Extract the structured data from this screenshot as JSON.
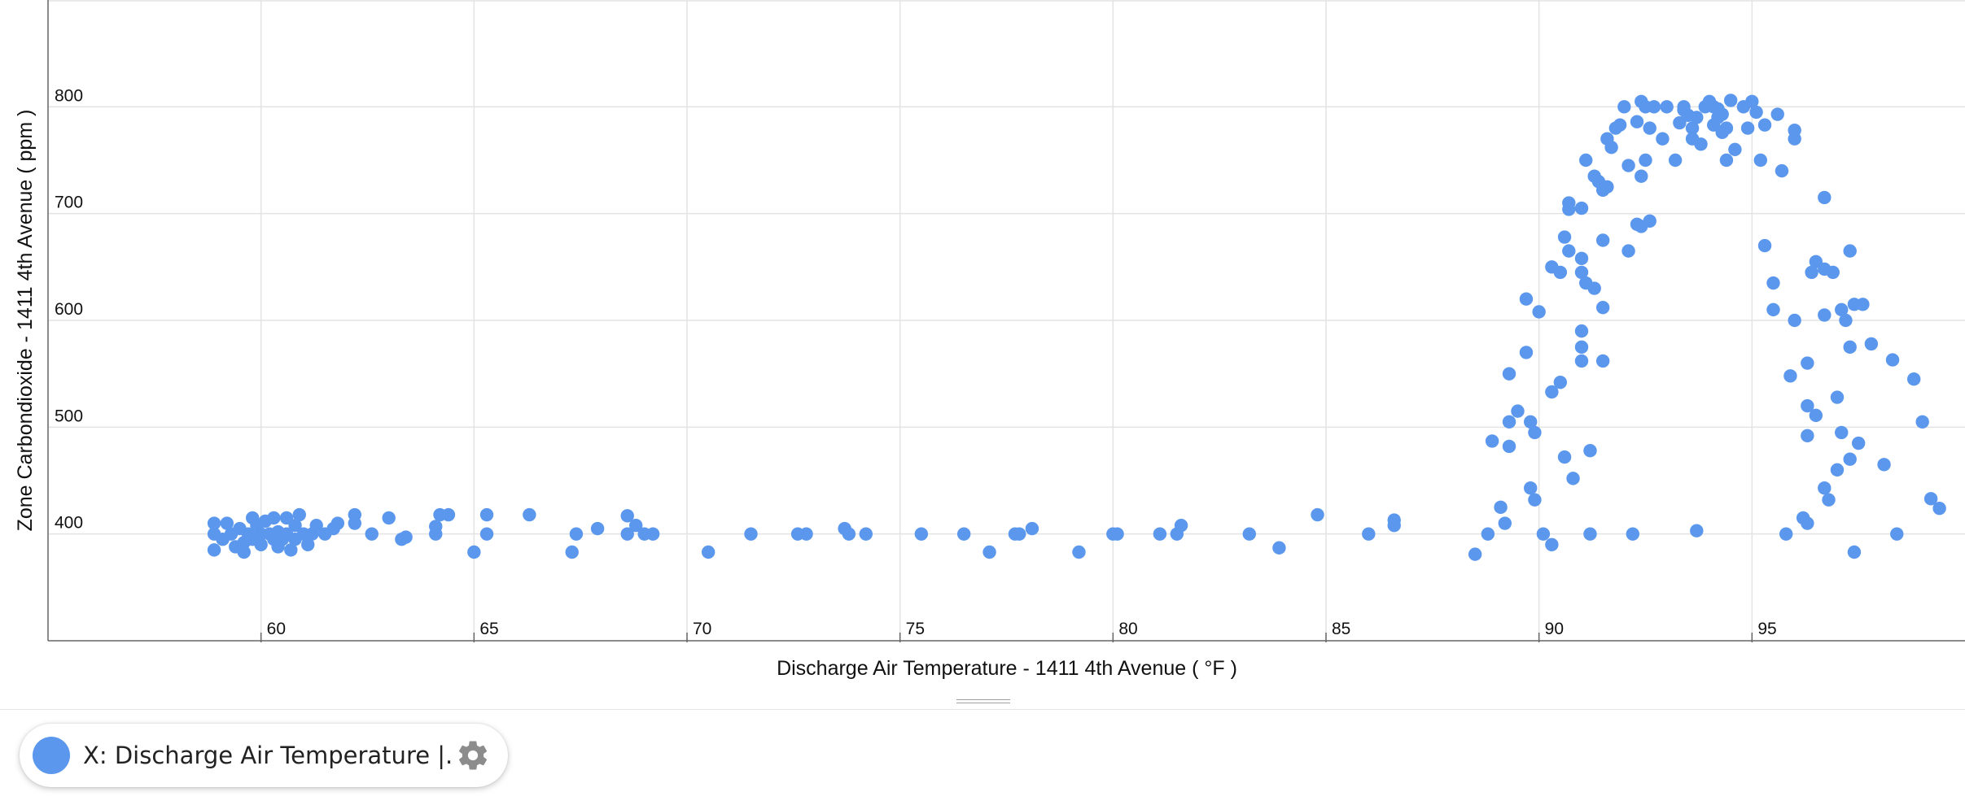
{
  "chart_data": {
    "type": "scatter",
    "title": "",
    "xlabel": "Discharge Air Temperature - 1411 4th Avenue ( °F )",
    "ylabel": "Zone Carbondioxide - 1411 4th Avenue ( ppm )",
    "xlim": [
      55,
      100
    ],
    "ylim": [
      300,
      900
    ],
    "xticks": [
      60,
      65,
      70,
      75,
      80,
      85,
      90,
      95
    ],
    "yticks": [
      400,
      500,
      600,
      700,
      800
    ],
    "grid": true,
    "marker_color": "#5b97ec",
    "series": [
      {
        "points": [
          [
            58.9,
            410
          ],
          [
            58.9,
            400
          ],
          [
            58.9,
            385
          ],
          [
            59.1,
            395
          ],
          [
            59.2,
            410
          ],
          [
            59.3,
            400
          ],
          [
            59.4,
            388
          ],
          [
            59.5,
            405
          ],
          [
            59.6,
            392
          ],
          [
            59.6,
            383
          ],
          [
            59.7,
            400
          ],
          [
            59.8,
            415
          ],
          [
            59.8,
            395
          ],
          [
            59.9,
            408
          ],
          [
            60.0,
            400
          ],
          [
            60.0,
            390
          ],
          [
            60.1,
            412
          ],
          [
            60.2,
            400
          ],
          [
            60.3,
            395
          ],
          [
            60.3,
            415
          ],
          [
            60.4,
            402
          ],
          [
            60.4,
            388
          ],
          [
            60.5,
            395
          ],
          [
            60.6,
            415
          ],
          [
            60.6,
            400
          ],
          [
            60.7,
            385
          ],
          [
            60.8,
            408
          ],
          [
            60.8,
            395
          ],
          [
            60.9,
            418
          ],
          [
            61.0,
            400
          ],
          [
            61.1,
            390
          ],
          [
            61.2,
            400
          ],
          [
            61.3,
            408
          ],
          [
            61.5,
            400
          ],
          [
            61.7,
            405
          ],
          [
            61.8,
            410
          ],
          [
            62.2,
            418
          ],
          [
            62.2,
            410
          ],
          [
            62.6,
            400
          ],
          [
            63.0,
            415
          ],
          [
            63.3,
            395
          ],
          [
            63.4,
            397
          ],
          [
            64.1,
            400
          ],
          [
            64.1,
            407
          ],
          [
            64.2,
            418
          ],
          [
            64.4,
            418
          ],
          [
            65.0,
            383
          ],
          [
            65.3,
            400
          ],
          [
            65.3,
            418
          ],
          [
            66.3,
            418
          ],
          [
            67.3,
            383
          ],
          [
            67.4,
            400
          ],
          [
            67.9,
            405
          ],
          [
            68.6,
            400
          ],
          [
            68.6,
            417
          ],
          [
            68.8,
            408
          ],
          [
            69.0,
            400
          ],
          [
            69.2,
            400
          ],
          [
            70.5,
            383
          ],
          [
            71.5,
            400
          ],
          [
            72.6,
            400
          ],
          [
            72.8,
            400
          ],
          [
            73.7,
            405
          ],
          [
            73.8,
            400
          ],
          [
            74.2,
            400
          ],
          [
            75.5,
            400
          ],
          [
            76.5,
            400
          ],
          [
            77.1,
            383
          ],
          [
            77.7,
            400
          ],
          [
            77.8,
            400
          ],
          [
            78.1,
            405
          ],
          [
            79.2,
            383
          ],
          [
            80.0,
            400
          ],
          [
            80.1,
            400
          ],
          [
            81.1,
            400
          ],
          [
            81.5,
            400
          ],
          [
            81.6,
            408
          ],
          [
            83.2,
            400
          ],
          [
            83.9,
            387
          ],
          [
            84.8,
            418
          ],
          [
            86.0,
            400
          ],
          [
            86.6,
            408
          ],
          [
            86.6,
            413
          ],
          [
            88.5,
            381
          ],
          [
            88.8,
            400
          ],
          [
            89.1,
            425
          ],
          [
            89.2,
            410
          ],
          [
            88.9,
            487
          ],
          [
            89.3,
            550
          ],
          [
            89.3,
            482
          ],
          [
            89.5,
            515
          ],
          [
            89.3,
            505
          ],
          [
            89.7,
            620
          ],
          [
            89.7,
            570
          ],
          [
            89.8,
            505
          ],
          [
            89.9,
            495
          ],
          [
            89.8,
            443
          ],
          [
            89.9,
            432
          ],
          [
            90.0,
            608
          ],
          [
            90.1,
            400
          ],
          [
            90.3,
            390
          ],
          [
            90.3,
            533
          ],
          [
            90.3,
            650
          ],
          [
            90.5,
            645
          ],
          [
            90.5,
            542
          ],
          [
            90.6,
            678
          ],
          [
            90.6,
            472
          ],
          [
            90.7,
            710
          ],
          [
            90.7,
            704
          ],
          [
            90.7,
            665
          ],
          [
            90.8,
            452
          ],
          [
            91.0,
            590
          ],
          [
            91.0,
            575
          ],
          [
            91.0,
            562
          ],
          [
            91.0,
            645
          ],
          [
            91.0,
            705
          ],
          [
            91.0,
            658
          ],
          [
            91.1,
            750
          ],
          [
            91.1,
            635
          ],
          [
            91.2,
            478
          ],
          [
            91.2,
            400
          ],
          [
            91.3,
            630
          ],
          [
            91.3,
            735
          ],
          [
            91.4,
            730
          ],
          [
            91.5,
            722
          ],
          [
            91.6,
            770
          ],
          [
            91.6,
            725
          ],
          [
            91.7,
            762
          ],
          [
            91.5,
            675
          ],
          [
            91.5,
            562
          ],
          [
            91.5,
            612
          ],
          [
            91.8,
            780
          ],
          [
            91.9,
            783
          ],
          [
            92.0,
            800
          ],
          [
            92.1,
            665
          ],
          [
            92.1,
            745
          ],
          [
            92.2,
            400
          ],
          [
            92.3,
            690
          ],
          [
            92.3,
            786
          ],
          [
            92.4,
            805
          ],
          [
            92.4,
            688
          ],
          [
            92.4,
            735
          ],
          [
            92.5,
            800
          ],
          [
            92.5,
            750
          ],
          [
            92.6,
            693
          ],
          [
            92.6,
            780
          ],
          [
            92.7,
            800
          ],
          [
            92.9,
            770
          ],
          [
            93.0,
            800
          ],
          [
            93.2,
            750
          ],
          [
            93.3,
            785
          ],
          [
            93.4,
            800
          ],
          [
            93.4,
            797
          ],
          [
            93.5,
            792
          ],
          [
            93.6,
            780
          ],
          [
            93.6,
            770
          ],
          [
            93.7,
            403
          ],
          [
            93.7,
            790
          ],
          [
            93.8,
            765
          ],
          [
            93.9,
            800
          ],
          [
            94.0,
            805
          ],
          [
            94.1,
            800
          ],
          [
            94.1,
            783
          ],
          [
            94.2,
            790
          ],
          [
            94.2,
            798
          ],
          [
            94.3,
            793
          ],
          [
            94.3,
            776
          ],
          [
            94.4,
            780
          ],
          [
            94.4,
            750
          ],
          [
            94.5,
            806
          ],
          [
            94.6,
            760
          ],
          [
            94.8,
            800
          ],
          [
            94.9,
            780
          ],
          [
            95.0,
            805
          ],
          [
            95.1,
            795
          ],
          [
            95.2,
            750
          ],
          [
            95.3,
            670
          ],
          [
            95.3,
            783
          ],
          [
            95.5,
            635
          ],
          [
            95.5,
            610
          ],
          [
            95.6,
            793
          ],
          [
            95.7,
            740
          ],
          [
            95.8,
            400
          ],
          [
            95.9,
            548
          ],
          [
            96.0,
            770
          ],
          [
            96.0,
            778
          ],
          [
            96.0,
            600
          ],
          [
            96.2,
            415
          ],
          [
            96.3,
            492
          ],
          [
            96.3,
            410
          ],
          [
            96.3,
            520
          ],
          [
            96.3,
            560
          ],
          [
            96.4,
            645
          ],
          [
            96.5,
            511
          ],
          [
            96.5,
            655
          ],
          [
            96.7,
            715
          ],
          [
            96.7,
            648
          ],
          [
            96.7,
            605
          ],
          [
            96.7,
            443
          ],
          [
            96.8,
            432
          ],
          [
            96.9,
            645
          ],
          [
            97.0,
            460
          ],
          [
            97.0,
            528
          ],
          [
            97.1,
            495
          ],
          [
            97.1,
            610
          ],
          [
            97.2,
            600
          ],
          [
            97.3,
            665
          ],
          [
            97.3,
            575
          ],
          [
            97.3,
            470
          ],
          [
            97.4,
            615
          ],
          [
            97.4,
            383
          ],
          [
            97.5,
            485
          ],
          [
            97.6,
            615
          ],
          [
            97.8,
            578
          ],
          [
            98.1,
            465
          ],
          [
            98.3,
            563
          ],
          [
            98.4,
            400
          ],
          [
            98.8,
            545
          ],
          [
            99.0,
            505
          ],
          [
            99.2,
            433
          ],
          [
            99.4,
            424
          ]
        ]
      }
    ]
  },
  "legend_panel": {
    "series_label": "X: Discharge Air Temperature  |...",
    "swatch_color": "#5b97ec",
    "settings_icon": "gear-icon"
  }
}
